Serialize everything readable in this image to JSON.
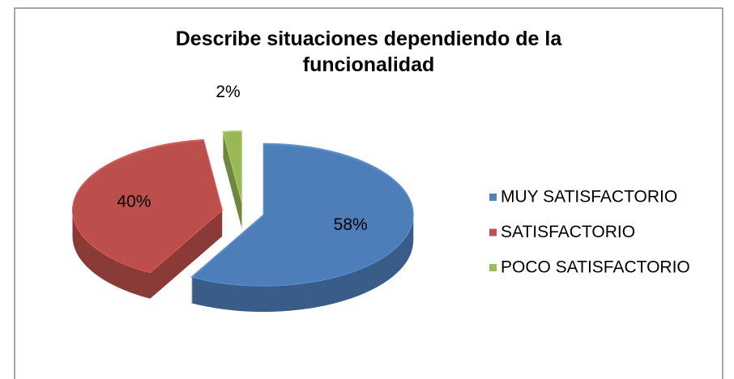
{
  "chart_data": {
    "type": "pie",
    "title": "Describe situaciones dependiendo de la funcionalidad",
    "categories": [
      "MUY SATISFACTORIO",
      "SATISFACTORIO",
      "POCO SATISFACTORIO"
    ],
    "values": [
      58,
      40,
      2
    ],
    "value_labels": [
      "58%",
      "40%",
      "2%"
    ],
    "colors": [
      "#4f81bd",
      "#c0504d",
      "#9bbb59"
    ],
    "legend": "right"
  }
}
